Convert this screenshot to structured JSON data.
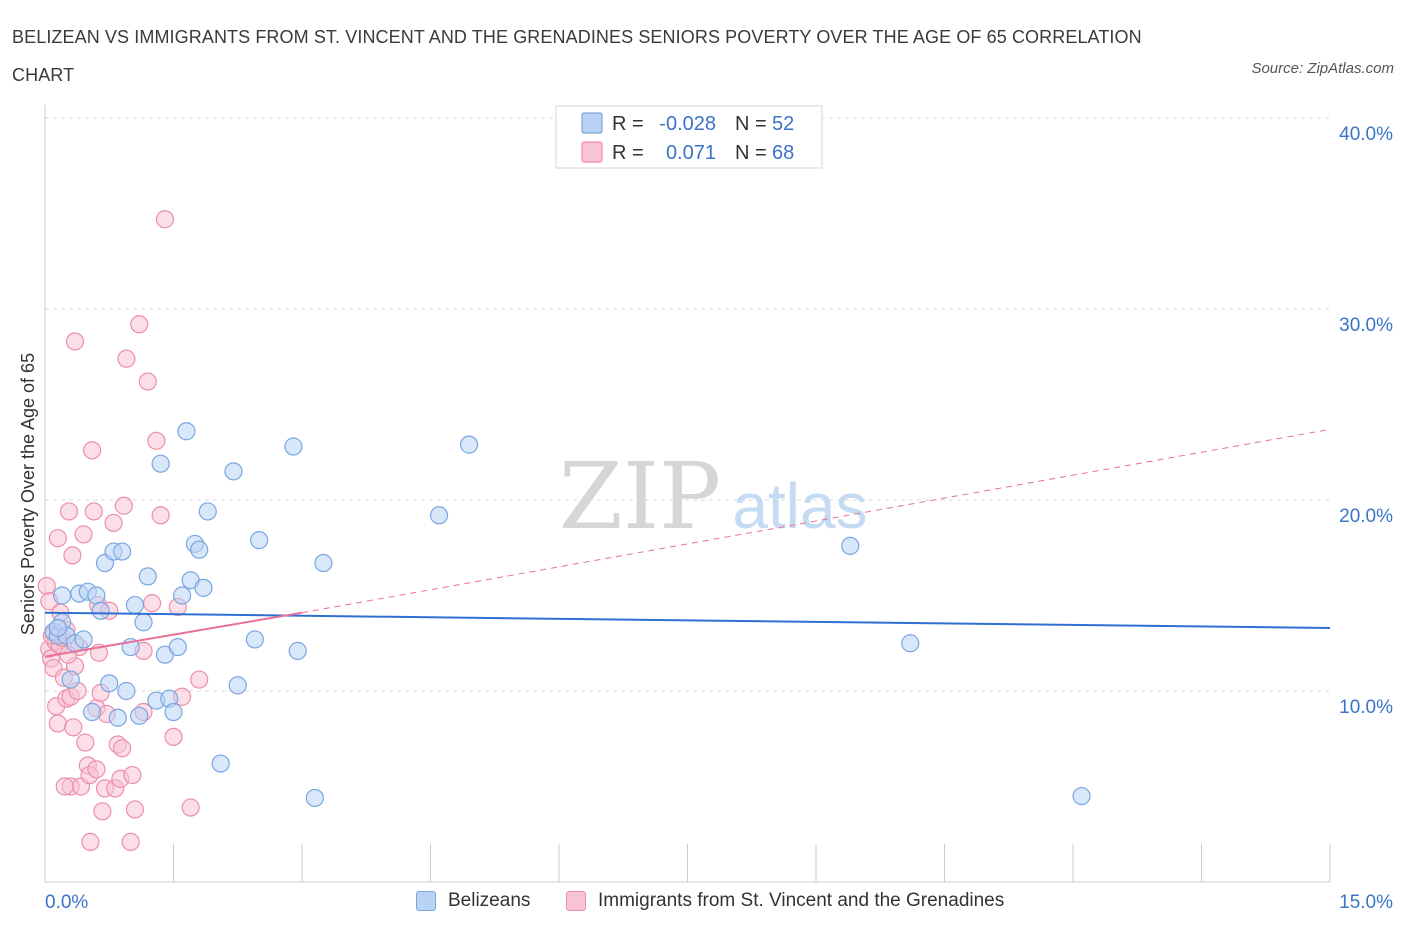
{
  "title": "BELIZEAN VS IMMIGRANTS FROM ST. VINCENT AND THE GRENADINES SENIORS POVERTY OVER THE AGE OF 65 CORRELATION CHART",
  "source": "Source: ZipAtlas.com",
  "watermark": {
    "zip": "ZIP",
    "atlas": "atlas"
  },
  "colors": {
    "blue_fill": "#b9d3f5",
    "blue_stroke": "#7aa6e0",
    "blue_line": "#2f6fd0",
    "pink_fill": "#f8c3d2",
    "pink_stroke": "#ec8fab",
    "pink_line": "#e8709a",
    "axis_text": "#3b73c9",
    "grid": "#d9d9d9"
  },
  "legend_top": [
    {
      "r_label": "R =",
      "r_value": "-0.028",
      "n_label": "N =",
      "n_value": "52",
      "series": "blue"
    },
    {
      "r_label": "R =",
      "r_value": "0.071",
      "n_label": "N =",
      "n_value": "68",
      "series": "pink"
    }
  ],
  "legend_bottom": [
    {
      "label": "Belizeans",
      "series": "blue"
    },
    {
      "label": "Immigrants from St. Vincent and the Grenadines",
      "series": "pink"
    }
  ],
  "chart_data": {
    "type": "scatter",
    "title": "BELIZEAN VS IMMIGRANTS FROM ST. VINCENT AND THE GRENADINES SENIORS POVERTY OVER THE AGE OF 65 CORRELATION CHART",
    "xlabel": "",
    "ylabel": "Seniors Poverty Over the Age of 65",
    "xlim": [
      0,
      15
    ],
    "ylim": [
      0,
      40
    ],
    "x_tick_labels": [
      "0.0%",
      "15.0%"
    ],
    "y_ticks": [
      10,
      20,
      30,
      40
    ],
    "y_tick_labels": [
      "10.0%",
      "20.0%",
      "30.0%",
      "40.0%"
    ],
    "grid": true,
    "series": [
      {
        "name": "Belizeans",
        "color": "#b9d3f5",
        "trend": {
          "x": [
            0,
            15
          ],
          "y": [
            14.1,
            13.3
          ],
          "style": "solid"
        },
        "points": [
          [
            0.1,
            13.1
          ],
          [
            0.15,
            12.9
          ],
          [
            0.2,
            13.6
          ],
          [
            0.2,
            15.0
          ],
          [
            0.25,
            12.9
          ],
          [
            0.3,
            10.6
          ],
          [
            0.35,
            12.5
          ],
          [
            0.4,
            15.1
          ],
          [
            0.45,
            12.7
          ],
          [
            0.5,
            15.2
          ],
          [
            0.55,
            8.9
          ],
          [
            0.6,
            15.0
          ],
          [
            0.65,
            14.2
          ],
          [
            0.7,
            16.7
          ],
          [
            0.75,
            10.4
          ],
          [
            0.8,
            17.3
          ],
          [
            0.85,
            8.6
          ],
          [
            0.9,
            17.3
          ],
          [
            0.95,
            10.0
          ],
          [
            1.0,
            12.3
          ],
          [
            1.05,
            14.5
          ],
          [
            1.1,
            8.7
          ],
          [
            1.15,
            13.6
          ],
          [
            1.2,
            16.0
          ],
          [
            1.3,
            9.5
          ],
          [
            1.35,
            21.9
          ],
          [
            1.4,
            11.9
          ],
          [
            1.45,
            9.6
          ],
          [
            1.5,
            8.9
          ],
          [
            1.55,
            12.3
          ],
          [
            1.6,
            15.0
          ],
          [
            1.65,
            23.6
          ],
          [
            1.7,
            15.8
          ],
          [
            1.75,
            17.7
          ],
          [
            1.8,
            17.4
          ],
          [
            1.85,
            15.4
          ],
          [
            1.9,
            19.4
          ],
          [
            2.05,
            6.2
          ],
          [
            2.2,
            21.5
          ],
          [
            2.25,
            10.3
          ],
          [
            2.45,
            12.7
          ],
          [
            2.5,
            17.9
          ],
          [
            2.9,
            22.8
          ],
          [
            2.95,
            12.1
          ],
          [
            3.15,
            4.4
          ],
          [
            3.25,
            16.7
          ],
          [
            4.6,
            19.2
          ],
          [
            4.95,
            22.9
          ],
          [
            9.4,
            17.6
          ],
          [
            10.1,
            12.5
          ],
          [
            12.1,
            4.5
          ],
          [
            0.15,
            13.3
          ]
        ]
      },
      {
        "name": "Immigrants from St. Vincent and the Grenadines",
        "color": "#f8c3d2",
        "trend": {
          "x": [
            0,
            3.0
          ],
          "y": [
            11.8,
            14.1
          ],
          "style": "solid",
          "dashed_extension": {
            "x": [
              3.0,
              15
            ],
            "y": [
              14.1,
              23.7
            ]
          }
        },
        "points": [
          [
            0.02,
            15.5
          ],
          [
            0.05,
            14.7
          ],
          [
            0.05,
            12.2
          ],
          [
            0.07,
            11.7
          ],
          [
            0.1,
            13.0
          ],
          [
            0.1,
            11.2
          ],
          [
            0.12,
            12.6
          ],
          [
            0.13,
            9.2
          ],
          [
            0.15,
            8.3
          ],
          [
            0.15,
            18.0
          ],
          [
            0.17,
            12.4
          ],
          [
            0.2,
            12.8
          ],
          [
            0.22,
            10.7
          ],
          [
            0.25,
            9.6
          ],
          [
            0.25,
            13.2
          ],
          [
            0.28,
            19.4
          ],
          [
            0.3,
            5.0
          ],
          [
            0.3,
            9.7
          ],
          [
            0.32,
            17.1
          ],
          [
            0.33,
            8.1
          ],
          [
            0.35,
            11.3
          ],
          [
            0.35,
            28.3
          ],
          [
            0.38,
            10.0
          ],
          [
            0.4,
            12.3
          ],
          [
            0.42,
            5.0
          ],
          [
            0.45,
            18.2
          ],
          [
            0.47,
            7.3
          ],
          [
            0.5,
            6.1
          ],
          [
            0.52,
            5.6
          ],
          [
            0.53,
            2.1
          ],
          [
            0.55,
            22.6
          ],
          [
            0.57,
            19.4
          ],
          [
            0.6,
            9.1
          ],
          [
            0.62,
            14.5
          ],
          [
            0.63,
            12.0
          ],
          [
            0.65,
            9.9
          ],
          [
            0.67,
            3.7
          ],
          [
            0.7,
            4.9
          ],
          [
            0.72,
            8.8
          ],
          [
            0.75,
            14.2
          ],
          [
            0.8,
            18.8
          ],
          [
            0.82,
            4.9
          ],
          [
            0.85,
            7.2
          ],
          [
            0.88,
            5.4
          ],
          [
            0.9,
            7.0
          ],
          [
            0.92,
            19.7
          ],
          [
            0.95,
            27.4
          ],
          [
            1.0,
            2.1
          ],
          [
            1.02,
            5.6
          ],
          [
            1.05,
            3.8
          ],
          [
            1.1,
            29.2
          ],
          [
            1.15,
            12.1
          ],
          [
            1.2,
            26.2
          ],
          [
            1.25,
            14.6
          ],
          [
            1.3,
            23.1
          ],
          [
            1.35,
            19.2
          ],
          [
            1.4,
            34.7
          ],
          [
            1.5,
            7.6
          ],
          [
            1.55,
            14.4
          ],
          [
            1.6,
            9.7
          ],
          [
            1.7,
            3.9
          ],
          [
            1.8,
            10.6
          ],
          [
            0.08,
            12.9
          ],
          [
            0.18,
            14.1
          ],
          [
            0.6,
            5.9
          ],
          [
            0.23,
            5.0
          ],
          [
            0.27,
            11.9
          ],
          [
            1.15,
            8.9
          ]
        ]
      }
    ]
  }
}
